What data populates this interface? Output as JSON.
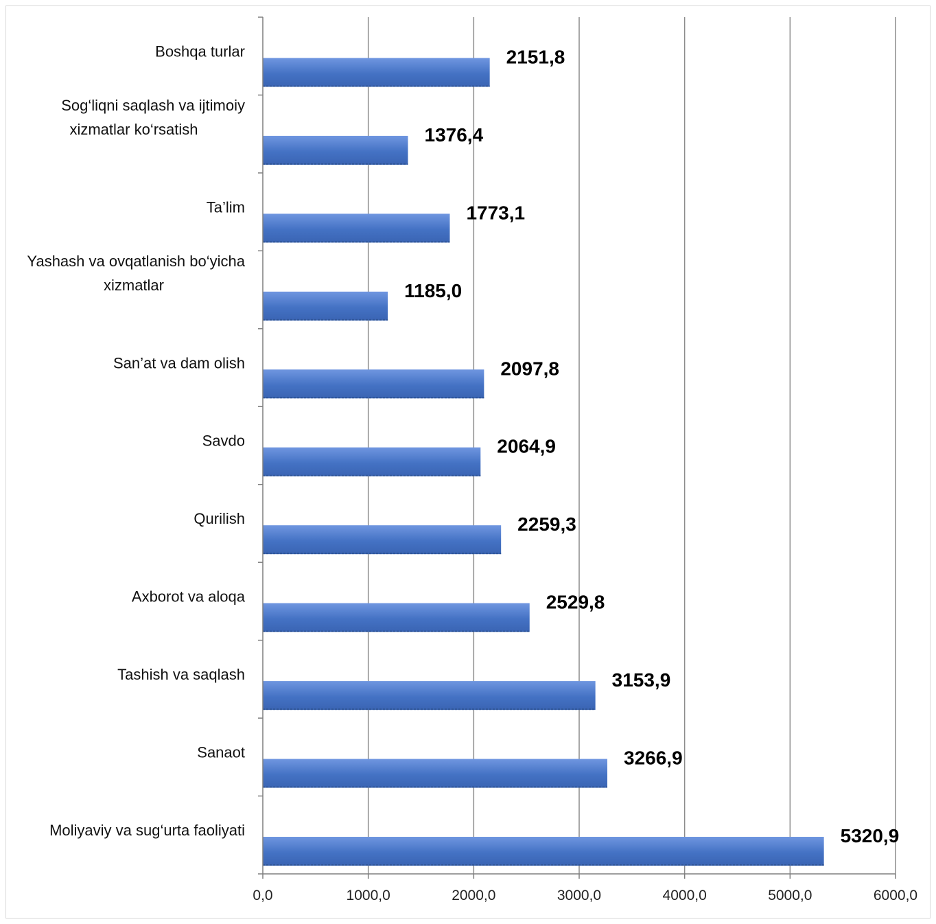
{
  "chart_data": {
    "type": "bar",
    "orientation": "horizontal",
    "title": "",
    "xlabel": "",
    "ylabel": "",
    "categories": [
      "Moliyaviy  va sug‘urta faoliyati",
      "Sanaot",
      "Tashish va saqlash",
      "Axborot va aloqa",
      "Qurilish",
      "Savdo",
      "San’at  va dam olish",
      "Yashash  va ovqatlanish  bo‘yicha xizmatlar",
      "Ta’lim",
      "Sog‘liqni  saqlash  va ijtimoiy xizmatlar  ko‘rsatish",
      "Boshqa  turlar"
    ],
    "category_lines": [
      [
        "Moliyaviy  va sug‘urta faoliyati"
      ],
      [
        "Sanaot"
      ],
      [
        "Tashish va saqlash"
      ],
      [
        "Axborot va aloqa"
      ],
      [
        "Qurilish"
      ],
      [
        "Savdo"
      ],
      [
        "San’at  va dam olish"
      ],
      [
        "Yashash  va ovqatlanish  bo‘yicha",
        "xizmatlar"
      ],
      [
        "Ta’lim"
      ],
      [
        "Sog‘liqni  saqlash  va ijtimoiy",
        "xizmatlar  ko‘rsatish"
      ],
      [
        "Boshqa  turlar"
      ]
    ],
    "values": [
      5320.9,
      3266.9,
      3153.9,
      2529.8,
      2259.3,
      2064.9,
      2097.8,
      1185.0,
      1773.1,
      1376.4,
      2151.8
    ],
    "value_labels": [
      "5320,9",
      "3266,9",
      "3153,9",
      "2529,8",
      "2259,3",
      "2064,9",
      "2097,8",
      "1185,0",
      "1773,1",
      "1376,4",
      "2151,8"
    ],
    "xlim": [
      0,
      6000
    ],
    "xticks": [
      0,
      1000,
      2000,
      3000,
      4000,
      5000,
      6000
    ],
    "xtick_labels": [
      "0,0",
      "1000,0",
      "2000,0",
      "3000,0",
      "4000,0",
      "5000,0",
      "6000,0"
    ],
    "grid": "vertical",
    "legend": "none",
    "colors": {
      "bar": "#4472c4",
      "bar_light": "#6f96e0",
      "bar_dark": "#2f5597",
      "grid": "#8c8c8c",
      "text": "#000000"
    }
  }
}
